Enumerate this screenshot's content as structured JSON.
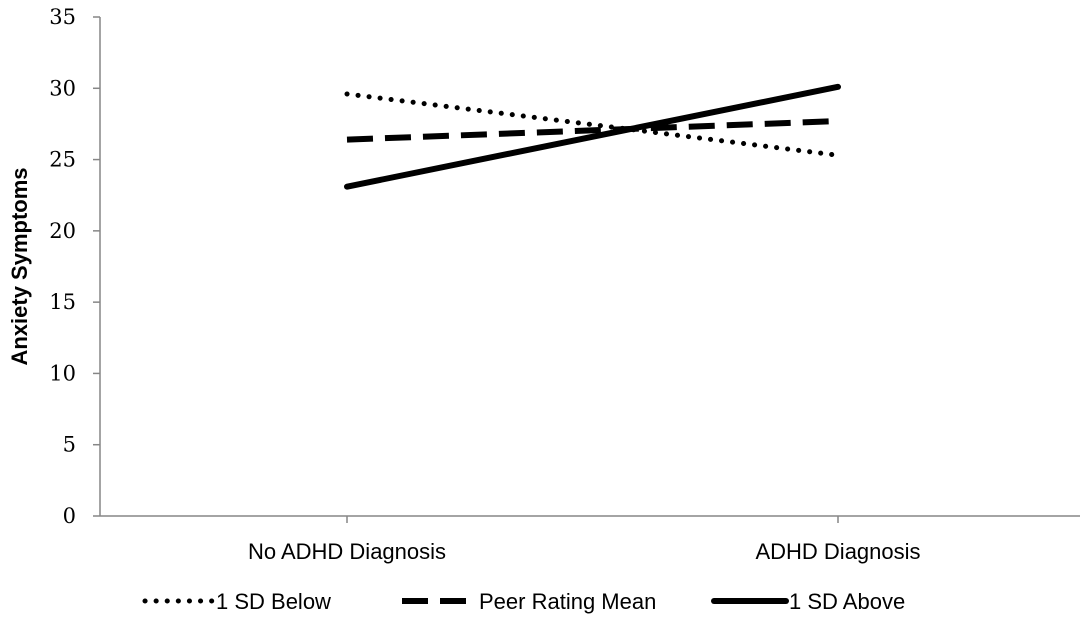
{
  "chart_data": {
    "type": "line",
    "categories": [
      "No ADHD Diagnosis",
      "ADHD Diagnosis"
    ],
    "series": [
      {
        "name": "1 SD Below",
        "values": [
          29.6,
          25.3
        ],
        "style": "dotted",
        "color": "#000000"
      },
      {
        "name": "Peer Rating Mean",
        "values": [
          26.4,
          27.7
        ],
        "style": "dashed",
        "color": "#000000"
      },
      {
        "name": "1 SD Above",
        "values": [
          23.1,
          30.1
        ],
        "style": "solid",
        "color": "#000000"
      }
    ],
    "title": "",
    "xlabel": "",
    "ylabel": "Anxiety Symptoms",
    "ylim": [
      0,
      35
    ],
    "yticks": [
      "0",
      "5",
      "10",
      "15",
      "20",
      "25",
      "30",
      "35"
    ],
    "grid": false,
    "legend_position": "bottom"
  }
}
